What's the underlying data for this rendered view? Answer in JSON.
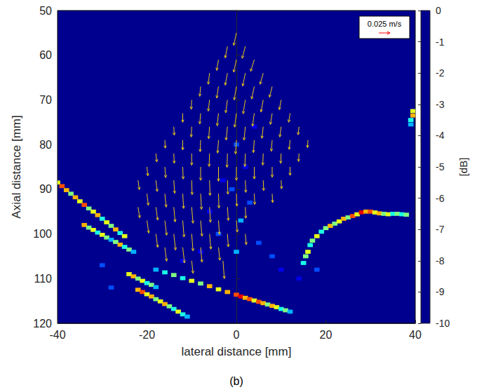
{
  "chart_data": {
    "type": "vector_field",
    "x_label": "lateral distance [mm]",
    "y_label": "Axial distance [mm]",
    "caption": "(b)",
    "xlim": [
      -40,
      40
    ],
    "xticks": [
      -40,
      -20,
      0,
      20,
      40
    ],
    "ylim": [
      120,
      50
    ],
    "yticks": [
      50,
      60,
      70,
      80,
      90,
      100,
      110,
      120
    ],
    "colorbar": {
      "label": "[dB]",
      "lim": [
        -10,
        0
      ],
      "ticks": [
        0,
        -1,
        -2,
        -3,
        -4,
        -5,
        -6,
        -7,
        -8,
        -9,
        -10
      ]
    },
    "cells": [
      [
        -40,
        88.5,
        -4
      ],
      [
        -39,
        89.3,
        -2
      ],
      [
        -38,
        90.2,
        -3
      ],
      [
        -37,
        91,
        -5
      ],
      [
        -36,
        91.8,
        -3
      ],
      [
        -35,
        92.7,
        -4
      ],
      [
        -34,
        93.5,
        -2
      ],
      [
        -33,
        94.3,
        -5
      ],
      [
        -32,
        95,
        -4
      ],
      [
        -31,
        95.8,
        -3
      ],
      [
        -30,
        96.6,
        -6
      ],
      [
        -29,
        97.4,
        -4
      ],
      [
        -28,
        98.2,
        -5
      ],
      [
        -27,
        99,
        -3
      ],
      [
        -26,
        99.8,
        -6
      ],
      [
        -25,
        100.5,
        -4
      ],
      [
        -34,
        98,
        -3
      ],
      [
        -33,
        98.6,
        -5
      ],
      [
        -32,
        99.1,
        -4
      ],
      [
        -31,
        99.7,
        -6
      ],
      [
        -30,
        100.2,
        -4
      ],
      [
        -29,
        100.8,
        -5
      ],
      [
        -28,
        101.3,
        -7
      ],
      [
        -27,
        101.8,
        -5
      ],
      [
        -26,
        102.4,
        -3
      ],
      [
        -25,
        102.9,
        -6
      ],
      [
        -24,
        103.5,
        -5
      ],
      [
        -23,
        104,
        -7
      ],
      [
        -24,
        109,
        -4
      ],
      [
        -23,
        109.5,
        -3
      ],
      [
        -22,
        110,
        -5
      ],
      [
        -21,
        110.5,
        -4
      ],
      [
        -20,
        111,
        -6
      ],
      [
        -19,
        111.4,
        -5
      ],
      [
        -18,
        111.9,
        -7
      ],
      [
        -22,
        112.5,
        -3
      ],
      [
        -21,
        113,
        -2
      ],
      [
        -20,
        113.5,
        -4
      ],
      [
        -19,
        114,
        -3
      ],
      [
        -18,
        114.6,
        -5
      ],
      [
        -17,
        115.1,
        -4
      ],
      [
        -16,
        115.7,
        -3
      ],
      [
        -15,
        116.2,
        -5
      ],
      [
        -14,
        116.8,
        -6
      ],
      [
        -13,
        117.4,
        -4
      ],
      [
        -12,
        118,
        -6
      ],
      [
        -11,
        118.5,
        -7
      ],
      [
        -18,
        108,
        -7
      ],
      [
        -16,
        108.6,
        -6
      ],
      [
        -14,
        109.2,
        -5
      ],
      [
        -12,
        109.9,
        -6
      ],
      [
        -10,
        110.5,
        -4
      ],
      [
        -8,
        111.1,
        -5
      ],
      [
        -6,
        111.7,
        -3
      ],
      [
        -4,
        112.4,
        -4
      ],
      [
        -2,
        113,
        -3
      ],
      [
        0,
        113.6,
        -2
      ],
      [
        1,
        114,
        -1
      ],
      [
        2,
        114.3,
        -3
      ],
      [
        3,
        114.6,
        -2
      ],
      [
        4,
        114.9,
        -4
      ],
      [
        5,
        115.2,
        -2
      ],
      [
        6,
        115.5,
        -3
      ],
      [
        7,
        115.8,
        -5
      ],
      [
        8,
        116.1,
        -3
      ],
      [
        9,
        116.4,
        -4
      ],
      [
        10,
        116.8,
        -6
      ],
      [
        11,
        117.1,
        -5
      ],
      [
        12,
        117.4,
        -7
      ],
      [
        15,
        106.5,
        -6
      ],
      [
        15.5,
        105,
        -5
      ],
      [
        16,
        104,
        -4
      ],
      [
        16.5,
        102.5,
        -6
      ],
      [
        17,
        101.5,
        -5
      ],
      [
        18,
        100.5,
        -4
      ],
      [
        19,
        99.5,
        -6
      ],
      [
        20,
        98.7,
        -5
      ],
      [
        21,
        98.2,
        -3
      ],
      [
        22,
        97.7,
        -5
      ],
      [
        23,
        97.2,
        -4
      ],
      [
        24,
        96.6,
        -3
      ],
      [
        25,
        96.3,
        -5
      ],
      [
        26,
        96,
        -2
      ],
      [
        27,
        95.6,
        -4
      ],
      [
        28,
        95.2,
        -1
      ],
      [
        29,
        95,
        -3
      ],
      [
        30,
        95,
        -2
      ],
      [
        31,
        95.2,
        -4
      ],
      [
        32,
        95.4,
        -3
      ],
      [
        33,
        95.5,
        -5
      ],
      [
        34,
        95.6,
        -4
      ],
      [
        35,
        95.5,
        -6
      ],
      [
        36,
        95.5,
        -5
      ],
      [
        37,
        95.6,
        -6
      ],
      [
        38,
        95.7,
        -5
      ],
      [
        39.5,
        72.5,
        -4
      ],
      [
        39.5,
        73.5,
        -3
      ],
      [
        39,
        74.5,
        -6
      ],
      [
        39,
        75.5,
        -7
      ],
      [
        0,
        80,
        -8
      ],
      [
        2,
        85,
        -9
      ],
      [
        -1,
        90,
        -8
      ],
      [
        3,
        93,
        -8
      ],
      [
        1,
        97,
        -7
      ],
      [
        -4,
        100,
        -8
      ],
      [
        5,
        102,
        -8
      ],
      [
        -8,
        104,
        -9
      ],
      [
        8,
        105,
        -8
      ],
      [
        0,
        104,
        -7
      ],
      [
        -12,
        106,
        -9
      ],
      [
        10,
        108,
        -9
      ],
      [
        -3,
        88,
        -9
      ],
      [
        4,
        76,
        -9
      ],
      [
        -6,
        95,
        -9
      ],
      [
        -30,
        107,
        -8
      ],
      [
        -28,
        112,
        -8
      ],
      [
        14,
        110,
        -9
      ],
      [
        18,
        108,
        -8
      ]
    ],
    "vectors": {
      "color": "#e6c619",
      "values": [
        [
          0,
          55,
          -0.006,
          0.028
        ],
        [
          -2,
          58,
          -0.005,
          0.026
        ],
        [
          2,
          58,
          -0.007,
          0.027
        ],
        [
          -4,
          61,
          -0.004,
          0.024
        ],
        [
          0,
          61,
          -0.006,
          0.028
        ],
        [
          4,
          61,
          -0.008,
          0.026
        ],
        [
          -6,
          64,
          -0.003,
          0.025
        ],
        [
          -2,
          64,
          -0.005,
          0.027
        ],
        [
          2,
          64,
          -0.006,
          0.029
        ],
        [
          6,
          64,
          -0.007,
          0.025
        ],
        [
          -8,
          67,
          -0.002,
          0.022
        ],
        [
          -4,
          67,
          -0.004,
          0.026
        ],
        [
          0,
          67,
          -0.005,
          0.03
        ],
        [
          4,
          67,
          -0.006,
          0.028
        ],
        [
          8,
          67,
          -0.006,
          0.024
        ],
        [
          -10,
          70,
          -0.001,
          0.021
        ],
        [
          -6,
          70,
          -0.003,
          0.025
        ],
        [
          -2,
          70,
          -0.004,
          0.029
        ],
        [
          2,
          70,
          -0.005,
          0.031
        ],
        [
          6,
          70,
          -0.005,
          0.027
        ],
        [
          10,
          70,
          -0.004,
          0.022
        ],
        [
          -12,
          73,
          0.0,
          0.02
        ],
        [
          -8,
          73,
          -0.002,
          0.024
        ],
        [
          -4,
          73,
          -0.003,
          0.028
        ],
        [
          0,
          73,
          -0.004,
          0.031
        ],
        [
          4,
          73,
          -0.004,
          0.029
        ],
        [
          8,
          73,
          -0.004,
          0.025
        ],
        [
          12,
          73,
          -0.003,
          0.02
        ],
        [
          -14,
          76,
          0.001,
          0.019
        ],
        [
          -10,
          76,
          -0.001,
          0.023
        ],
        [
          -6,
          76,
          -0.002,
          0.027
        ],
        [
          -2,
          76,
          -0.003,
          0.03
        ],
        [
          2,
          76,
          -0.003,
          0.03
        ],
        [
          6,
          76,
          -0.003,
          0.026
        ],
        [
          10,
          76,
          -0.003,
          0.023
        ],
        [
          14,
          76,
          -0.002,
          0.018
        ],
        [
          -16,
          79,
          0.001,
          0.018
        ],
        [
          -12,
          79,
          0.0,
          0.022
        ],
        [
          -8,
          79,
          -0.001,
          0.026
        ],
        [
          -4,
          79,
          -0.002,
          0.029
        ],
        [
          0,
          79,
          -0.002,
          0.031
        ],
        [
          4,
          79,
          -0.002,
          0.028
        ],
        [
          8,
          79,
          -0.002,
          0.025
        ],
        [
          12,
          79,
          -0.002,
          0.021
        ],
        [
          16,
          79,
          -0.001,
          0.017
        ],
        [
          -18,
          82,
          0.002,
          0.019
        ],
        [
          -14,
          82,
          0.001,
          0.022
        ],
        [
          -10,
          82,
          0.0,
          0.026
        ],
        [
          -6,
          82,
          -0.001,
          0.029
        ],
        [
          -2,
          82,
          -0.001,
          0.031
        ],
        [
          2,
          82,
          -0.001,
          0.029
        ],
        [
          6,
          82,
          -0.001,
          0.026
        ],
        [
          10,
          82,
          -0.001,
          0.022
        ],
        [
          14,
          82,
          -0.001,
          0.018
        ],
        [
          -20,
          85,
          0.002,
          0.02
        ],
        [
          -16,
          85,
          0.002,
          0.024
        ],
        [
          -12,
          85,
          0.001,
          0.027
        ],
        [
          -8,
          85,
          0.0,
          0.03
        ],
        [
          -4,
          85,
          0.0,
          0.032
        ],
        [
          0,
          85,
          0.0,
          0.03
        ],
        [
          4,
          85,
          0.0,
          0.027
        ],
        [
          8,
          85,
          0.0,
          0.023
        ],
        [
          12,
          85,
          0.0,
          0.019
        ],
        [
          -22,
          88,
          0.003,
          0.021
        ],
        [
          -18,
          88,
          0.003,
          0.025
        ],
        [
          -14,
          88,
          0.002,
          0.029
        ],
        [
          -10,
          88,
          0.001,
          0.032
        ],
        [
          -6,
          88,
          0.001,
          0.034
        ],
        [
          -2,
          88,
          0.001,
          0.031
        ],
        [
          2,
          88,
          0.001,
          0.027
        ],
        [
          6,
          88,
          0.001,
          0.023
        ],
        [
          10,
          88,
          0.001,
          0.019
        ],
        [
          -20,
          91,
          0.003,
          0.026
        ],
        [
          -16,
          91,
          0.003,
          0.03
        ],
        [
          -12,
          91,
          0.002,
          0.033
        ],
        [
          -8,
          91,
          0.002,
          0.035
        ],
        [
          -4,
          91,
          0.001,
          0.032
        ],
        [
          0,
          91,
          0.001,
          0.028
        ],
        [
          4,
          91,
          0.001,
          0.024
        ],
        [
          8,
          91,
          0.001,
          0.02
        ],
        [
          -22,
          94,
          0.004,
          0.024
        ],
        [
          -18,
          94,
          0.004,
          0.029
        ],
        [
          -14,
          94,
          0.003,
          0.033
        ],
        [
          -10,
          94,
          0.003,
          0.036
        ],
        [
          -6,
          94,
          0.002,
          0.034
        ],
        [
          -2,
          94,
          0.002,
          0.03
        ],
        [
          2,
          94,
          0.001,
          0.025
        ],
        [
          -20,
          97,
          0.004,
          0.028
        ],
        [
          -16,
          97,
          0.004,
          0.033
        ],
        [
          -12,
          97,
          0.003,
          0.037
        ],
        [
          -8,
          97,
          0.003,
          0.035
        ],
        [
          -4,
          97,
          0.002,
          0.031
        ],
        [
          0,
          97,
          0.002,
          0.026
        ],
        [
          -18,
          100,
          0.004,
          0.03
        ],
        [
          -14,
          100,
          0.004,
          0.036
        ],
        [
          -10,
          100,
          0.003,
          0.038
        ],
        [
          -6,
          100,
          0.003,
          0.034
        ],
        [
          -2,
          100,
          0.002,
          0.029
        ],
        [
          2,
          100,
          0.002,
          0.024
        ],
        [
          -16,
          103,
          0.004,
          0.031
        ],
        [
          -12,
          103,
          0.004,
          0.035
        ],
        [
          -8,
          103,
          0.003,
          0.033
        ],
        [
          -4,
          103,
          0.003,
          0.029
        ],
        [
          -10,
          106,
          0.003,
          0.028
        ],
        [
          -3,
          106,
          0.003,
          0.04
        ]
      ]
    },
    "vector_scale": {
      "value": 0.025,
      "label": "0.025 m/s",
      "color": "#ff0000"
    }
  }
}
